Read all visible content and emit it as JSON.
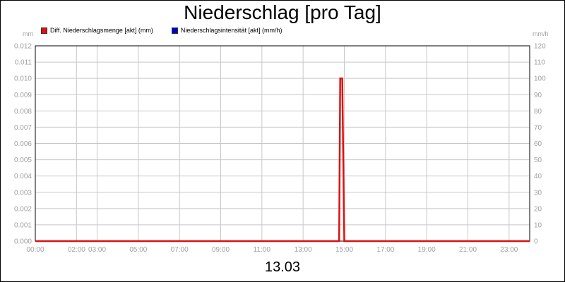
{
  "chart_data": {
    "type": "line",
    "title": "Niederschlag [pro Tag]",
    "date_label": "13.03",
    "left_axis": {
      "unit": "mm",
      "range": [
        0,
        0.012
      ],
      "ticks": [
        "0.000",
        "0.001",
        "0.002",
        "0.003",
        "0.004",
        "0.005",
        "0.006",
        "0.007",
        "0.008",
        "0.009",
        "0.010",
        "0.011",
        "0.012"
      ]
    },
    "right_axis": {
      "unit": "mm/h",
      "range": [
        0,
        120
      ],
      "ticks": [
        "0",
        "10",
        "20",
        "30",
        "40",
        "50",
        "60",
        "70",
        "80",
        "90",
        "100",
        "110",
        "120"
      ]
    },
    "x_axis": {
      "range_hours": [
        0,
        24
      ],
      "ticks": [
        {
          "label": "00:00",
          "hour": 0
        },
        {
          "label": "02:00",
          "hour": 2
        },
        {
          "label": "03:00",
          "hour": 3
        },
        {
          "label": "05:00",
          "hour": 5
        },
        {
          "label": "07:00",
          "hour": 7
        },
        {
          "label": "09:00",
          "hour": 9
        },
        {
          "label": "11:00",
          "hour": 11
        },
        {
          "label": "13:00",
          "hour": 13
        },
        {
          "label": "15:00",
          "hour": 15
        },
        {
          "label": "17:00",
          "hour": 17
        },
        {
          "label": "19:00",
          "hour": 19
        },
        {
          "label": "21:00",
          "hour": 21
        },
        {
          "label": "23:00",
          "hour": 23
        }
      ]
    },
    "grid": true,
    "legend_placement": "top-left",
    "series": [
      {
        "name": "Diff. Niederschlagsmenge [akt] (mm)",
        "color": "#dd1111",
        "axis": "left",
        "points": [
          [
            0,
            0
          ],
          [
            14.75,
            0
          ],
          [
            14.8,
            0.01
          ],
          [
            14.9,
            0.01
          ],
          [
            15.0,
            0
          ],
          [
            24,
            0
          ]
        ]
      },
      {
        "name": "Niederschlagsintensität [akt] (mm/h)",
        "color": "#0000cc",
        "axis": "right",
        "points": []
      }
    ]
  }
}
